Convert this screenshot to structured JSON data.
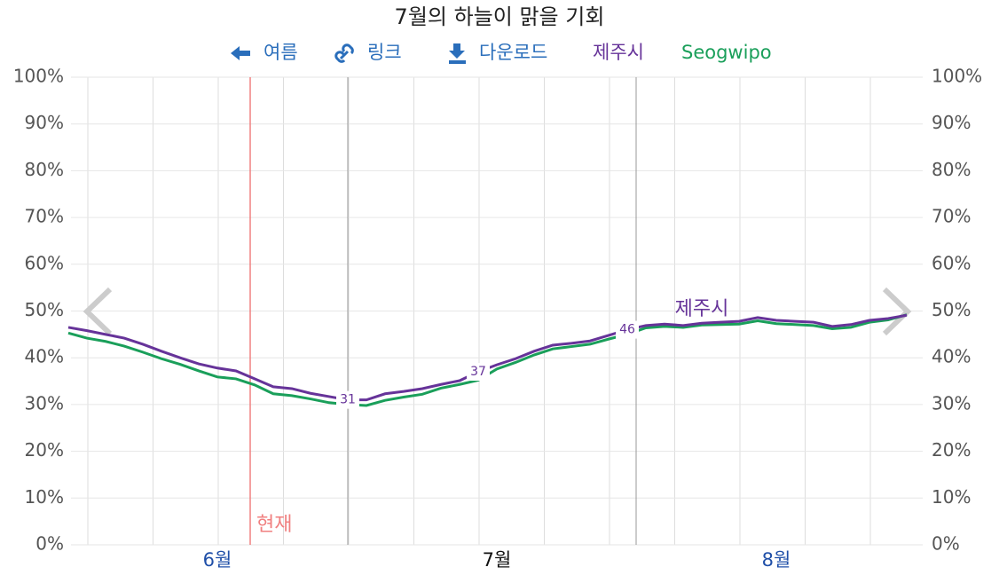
{
  "chart_data": {
    "type": "line",
    "title": "7월의 하늘이 맑을 기회",
    "nav": [
      "여름",
      "링크",
      "다운로드"
    ],
    "now_label": "현재",
    "categories": [
      null,
      null,
      null,
      null,
      null,
      null,
      null,
      null,
      "6월",
      null,
      null,
      null,
      null,
      null,
      null,
      null,
      null,
      null,
      null,
      null,
      null,
      null,
      null,
      "7월",
      null,
      null,
      null,
      null,
      null,
      null,
      null,
      null,
      null,
      null,
      null,
      null,
      null,
      null,
      "8월",
      null,
      null,
      null,
      null,
      null,
      null,
      null
    ],
    "series": [
      {
        "name": "제주시",
        "color": "#663399",
        "values": [
          46.5,
          45.8,
          45,
          44.2,
          42.9,
          41.4,
          40,
          38.7,
          37.8,
          37.2,
          35.5,
          33.8,
          33.4,
          32.4,
          31.7,
          31,
          31,
          32.3,
          32.8,
          33.4,
          34.3,
          35.1,
          37,
          38.5,
          39.8,
          41.4,
          42.7,
          43.1,
          43.6,
          44.8,
          46,
          46.9,
          47.2,
          46.9,
          47.4,
          47.6,
          47.8,
          48.6,
          48,
          47.8,
          47.6,
          46.7,
          47.1,
          48,
          48.4,
          49.1
        ],
        "value_labels": [
          null,
          null,
          null,
          null,
          null,
          null,
          null,
          null,
          null,
          null,
          null,
          null,
          null,
          null,
          null,
          "31",
          null,
          null,
          null,
          null,
          null,
          null,
          "37",
          null,
          null,
          null,
          null,
          null,
          null,
          null,
          "46",
          null,
          null,
          null,
          null,
          null,
          null,
          null,
          null,
          null,
          null,
          null,
          null,
          null,
          null,
          null
        ]
      },
      {
        "name": "Seogwipo",
        "color": "#1a9f5a",
        "values": [
          45.3,
          44.2,
          43.5,
          42.5,
          41.2,
          39.8,
          38.6,
          37.2,
          35.9,
          35.5,
          34.2,
          32.3,
          31.9,
          31.2,
          30.4,
          30,
          29.8,
          30.9,
          31.6,
          32.2,
          33.5,
          34.3,
          35.2,
          37.6,
          39,
          40.6,
          41.9,
          42.4,
          42.9,
          44,
          45,
          46.4,
          46.7,
          46.5,
          47,
          47.1,
          47.2,
          47.9,
          47.3,
          47.1,
          46.9,
          46.2,
          46.5,
          47.6,
          48.1,
          49.2
        ]
      }
    ],
    "ylim": [
      0,
      100
    ],
    "yticks": [
      {
        "value": 0,
        "label": "0%"
      },
      {
        "value": 10,
        "label": "10%"
      },
      {
        "value": 20,
        "label": "20%"
      },
      {
        "value": 30,
        "label": "30%"
      },
      {
        "value": 40,
        "label": "40%"
      },
      {
        "value": 50,
        "label": "50%"
      },
      {
        "value": 60,
        "label": "60%"
      },
      {
        "value": 70,
        "label": "70%"
      },
      {
        "value": 80,
        "label": "80%"
      },
      {
        "value": 90,
        "label": "90%"
      },
      {
        "value": 100,
        "label": "100%"
      }
    ],
    "grid": true
  }
}
